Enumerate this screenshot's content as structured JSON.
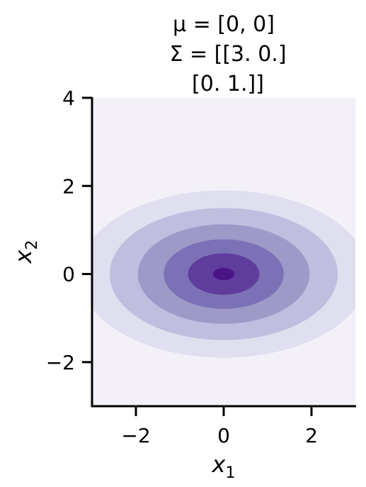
{
  "chart_data": {
    "type": "contour",
    "title_lines": [
      "μ = [0, 0]",
      "Σ = [[3. 0.]",
      "[0. 1.]]"
    ],
    "mean": [
      0,
      0
    ],
    "covariance": [
      [
        3,
        0
      ],
      [
        0,
        1
      ]
    ],
    "xlabel": {
      "base": "x",
      "sub": "1"
    },
    "ylabel": {
      "base": "x",
      "sub": "2"
    },
    "xlim": [
      -3,
      3
    ],
    "ylim": [
      -3,
      4
    ],
    "xticks": [
      -2,
      0,
      2
    ],
    "yticks": [
      -2,
      0,
      2,
      4
    ],
    "xtick_labels": [
      "−2",
      "0",
      "2"
    ],
    "ytick_labels": [
      "−2",
      "0",
      "2",
      "4"
    ],
    "levels": [
      {
        "mahalanobis_radius": 1.9,
        "color": "#e0dff0"
      },
      {
        "mahalanobis_radius": 1.5,
        "color": "#bfbedf"
      },
      {
        "mahalanobis_radius": 1.13,
        "color": "#9e9ac8"
      },
      {
        "mahalanobis_radius": 0.79,
        "color": "#7c71b6"
      },
      {
        "mahalanobis_radius": 0.47,
        "color": "#5f3d9c"
      },
      {
        "mahalanobis_radius": 0.14,
        "color": "#4a1486"
      }
    ],
    "background_color": "#f3f1f7",
    "spines": [
      "left",
      "bottom"
    ]
  }
}
